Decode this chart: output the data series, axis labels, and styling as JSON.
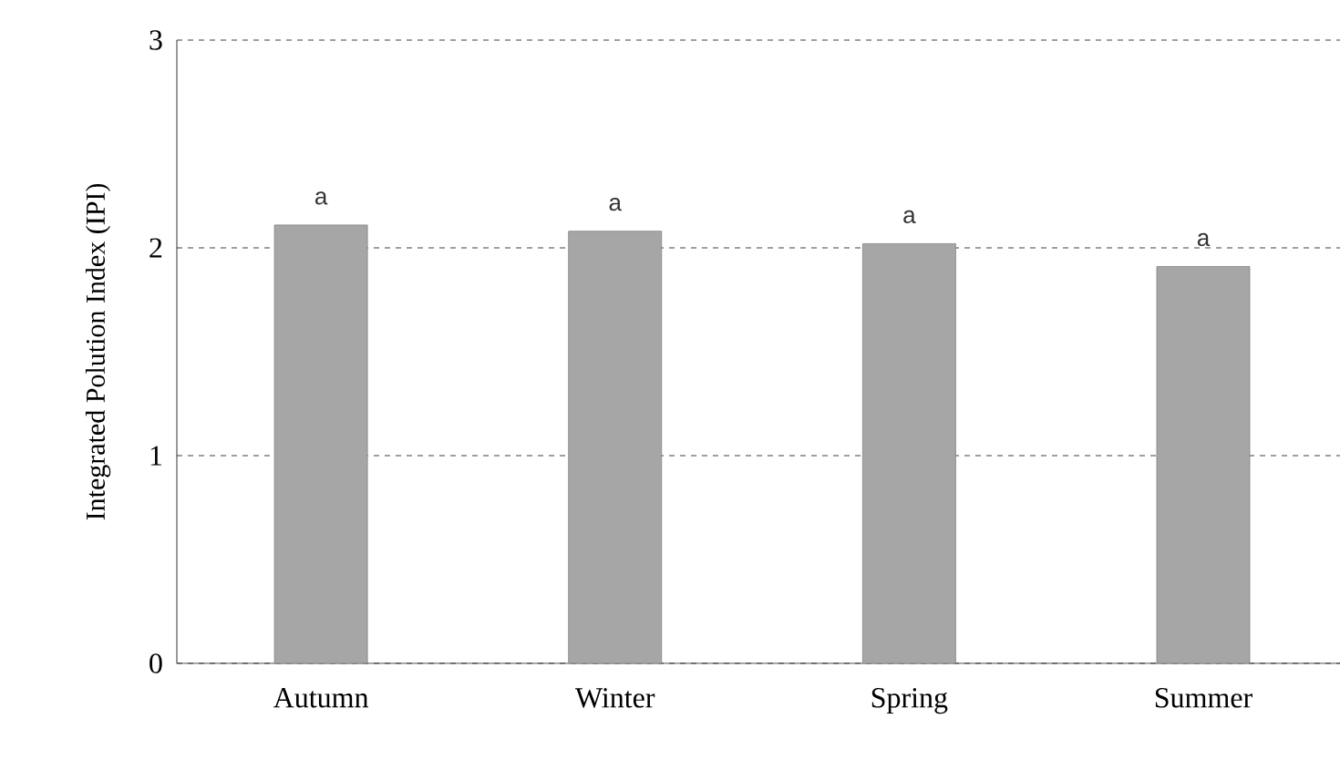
{
  "chart_data": {
    "type": "bar",
    "ylabel": "Integrated Polution  Index (IPI)",
    "categories": [
      "Autumn",
      "Winter",
      "Spring",
      "Summer"
    ],
    "values": [
      2.11,
      2.08,
      2.02,
      1.91
    ],
    "color": "#a6a6a6",
    "ylim": [
      0,
      3
    ],
    "yticks": [
      0,
      1,
      2,
      3
    ],
    "grid": "y",
    "line_style": "dashed",
    "annotations": [
      "a",
      "a",
      "a",
      "a"
    ]
  }
}
